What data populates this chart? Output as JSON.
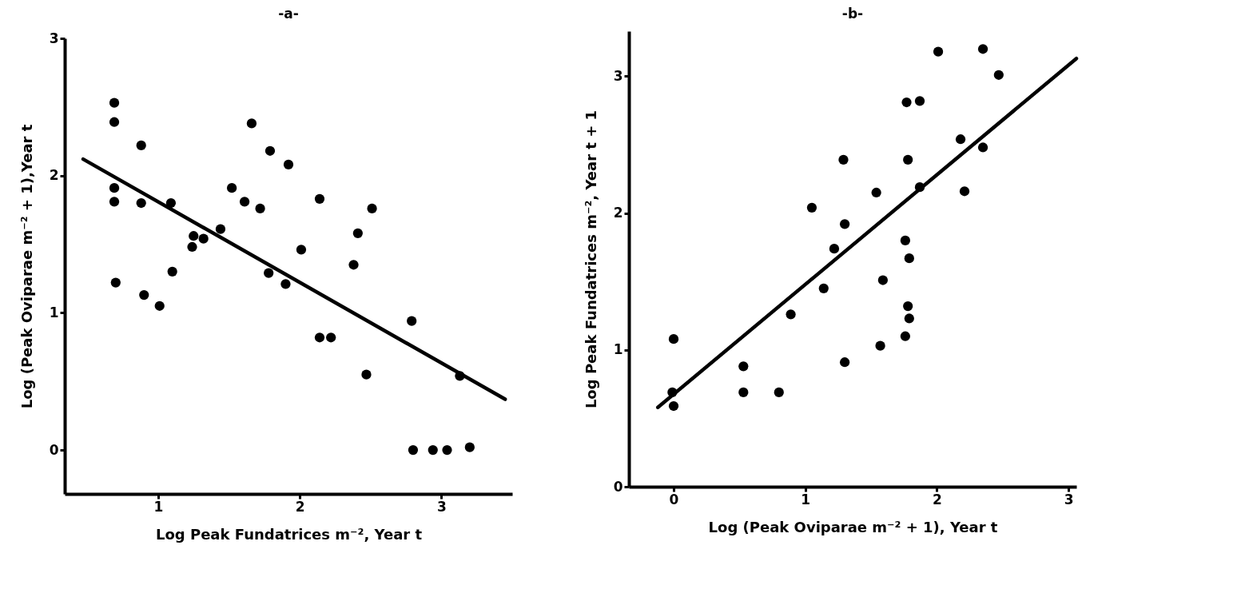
{
  "chart_data": [
    {
      "type": "scatter",
      "title": "-a-",
      "xlabel": "Log Peak Fundatrices m⁻², Year t",
      "ylabel": "Log (Peak Oviparae m⁻² + 1),Year t",
      "xlim": [
        0.34,
        3.5
      ],
      "ylim": [
        -0.32,
        3
      ],
      "xticks": [
        1,
        2,
        3
      ],
      "yticks": [
        0,
        1,
        2,
        3
      ],
      "series": [
        {
          "marker": "circle",
          "color": "#000000",
          "x": [
            0.69,
            0.69,
            0.88,
            1.66,
            1.79,
            1.92,
            0.69,
            0.69,
            0.88,
            1.09,
            1.52,
            1.61,
            1.72,
            2.14,
            2.51,
            2.41,
            2.01,
            2.38,
            1.44,
            1.25,
            1.32,
            1.24,
            1.1,
            0.7,
            0.9,
            1.01,
            1.78,
            1.9,
            2.14,
            2.22,
            2.79,
            2.47,
            3.13,
            2.8,
            2.94,
            3.04,
            3.2
          ],
          "values": [
            2.53,
            2.39,
            2.22,
            2.38,
            2.18,
            2.08,
            1.91,
            1.81,
            1.8,
            1.8,
            1.91,
            1.81,
            1.76,
            1.83,
            1.76,
            1.58,
            1.46,
            1.35,
            1.61,
            1.56,
            1.54,
            1.48,
            1.3,
            1.22,
            1.13,
            1.05,
            1.29,
            1.21,
            0.82,
            0.82,
            0.94,
            0.55,
            0.54,
            0,
            0,
            0,
            0.02
          ]
        },
        {
          "type": "line",
          "marker": "none",
          "color": "#000000",
          "x": [
            0.47,
            3.45
          ],
          "values": [
            2.12,
            0.37
          ]
        }
      ]
    },
    {
      "type": "scatter",
      "title": "-b-",
      "xlabel": "Log (Peak Oviparae m⁻² + 1), Year t",
      "ylabel": "Log Peak Fundatrices m⁻², Year t + 1",
      "xlim": [
        -0.34,
        3.06
      ],
      "ylim": [
        0,
        3.33
      ],
      "xticks": [
        0,
        1,
        2,
        3
      ],
      "yticks": [
        0,
        1,
        2,
        3
      ],
      "series": [
        {
          "marker": "circle",
          "color": "#000000",
          "x": [
            2.01,
            2.35,
            2.47,
            1.77,
            1.87,
            2.18,
            2.35,
            1.29,
            1.78,
            1.87,
            2.21,
            1.54,
            1.05,
            1.3,
            1.22,
            1.76,
            1.79,
            1.59,
            1.14,
            1.78,
            1.79,
            1.76,
            1.57,
            0.89,
            0.0,
            0.53,
            1.3,
            0.53,
            0.8,
            -0.01,
            0.0
          ],
          "values": [
            3.18,
            3.2,
            3.01,
            2.81,
            2.82,
            2.54,
            2.48,
            2.39,
            2.39,
            2.19,
            2.16,
            2.15,
            2.04,
            1.92,
            1.74,
            1.8,
            1.67,
            1.51,
            1.45,
            1.32,
            1.23,
            1.1,
            1.03,
            1.26,
            1.08,
            0.88,
            0.91,
            0.69,
            0.69,
            0.69,
            0.59
          ]
        },
        {
          "type": "line",
          "marker": "none",
          "color": "#000000",
          "x": [
            -0.12,
            3.06
          ],
          "values": [
            0.58,
            3.13
          ]
        }
      ]
    }
  ]
}
